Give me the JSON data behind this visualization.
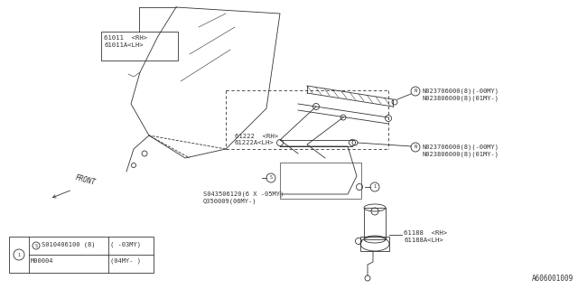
{
  "bg_color": "#ffffff",
  "diagram_id": "A606001009",
  "labels": {
    "part_61011": "61011  <RH>\n61011A<LH>",
    "part_61222": "61222  <RH>\n61222A<LH>",
    "part_N1_top": "N023706000(8)(-00MY)\nN023806000(8)(01MY-)",
    "part_N2_bottom": "N023706000(8)(-00MY)\nN023806000(8)(01MY-)",
    "part_S": "S043506120(6 X -05MY)\nQ350009(06MY-)",
    "part_61188": "61188  <RH>\n61188A<LH>",
    "front_label": "FRONT",
    "legend_row1_col1": "S010406100 (8)",
    "legend_row1_col2": "( -03MY)",
    "legend_row2_col1": "M00004",
    "legend_row2_col2": "(04MY- )"
  }
}
